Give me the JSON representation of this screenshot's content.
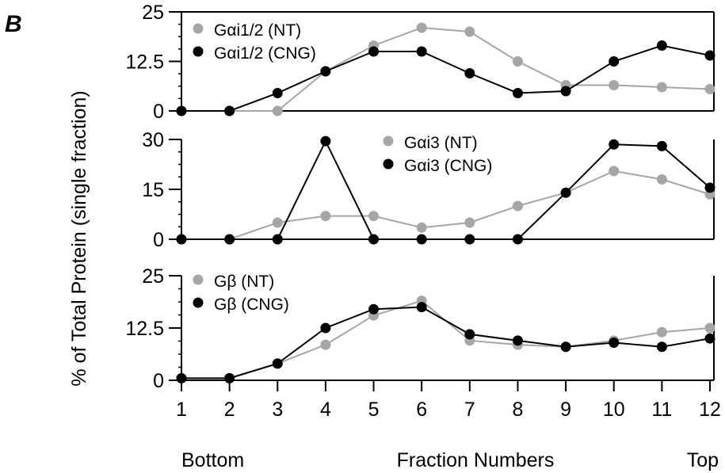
{
  "panel_label": "B",
  "ylabel": "%  of Total  Protein (single fraction)",
  "xlabel": "Fraction Numbers",
  "x_left_label": "Bottom",
  "x_right_label": "Top",
  "x_ticks": [
    "1",
    "2",
    "3",
    "4",
    "5",
    "6",
    "7",
    "8",
    "9",
    "10",
    "11",
    "12"
  ],
  "colors": {
    "NT": "#a6a6a6",
    "CNG": "#000000"
  },
  "chart_data": [
    {
      "type": "line",
      "x": [
        1,
        2,
        3,
        4,
        5,
        6,
        7,
        8,
        9,
        10,
        11,
        12
      ],
      "ylim": [
        0,
        25
      ],
      "yticks": [
        "0",
        "12.5",
        "25"
      ],
      "ytick_values": [
        0,
        12.5,
        25
      ],
      "legend": "top-left",
      "series": [
        {
          "name": "Gαi1/2 (NT)",
          "key": "NT",
          "values": [
            0,
            0,
            0,
            10,
            16.5,
            21,
            20,
            12.5,
            6.5,
            6.5,
            6,
            5.5
          ]
        },
        {
          "name": "Gαi1/2 (CNG)",
          "key": "CNG",
          "values": [
            0,
            0,
            4.5,
            10,
            15,
            15,
            9.5,
            4.5,
            5,
            12.5,
            16.5,
            14
          ]
        }
      ]
    },
    {
      "type": "line",
      "x": [
        1,
        2,
        3,
        4,
        5,
        6,
        7,
        8,
        9,
        10,
        11,
        12
      ],
      "ylim": [
        0,
        30
      ],
      "yticks": [
        "0",
        "15",
        "30"
      ],
      "ytick_values": [
        0,
        15,
        30
      ],
      "legend": "top-center",
      "series": [
        {
          "name": "Gαi3 (NT)",
          "key": "NT",
          "values": [
            0,
            0,
            5,
            7,
            7,
            3.5,
            5,
            10,
            14,
            20.5,
            18,
            13.5
          ]
        },
        {
          "name": "Gαi3 (CNG)",
          "key": "CNG",
          "values": [
            0,
            0,
            0,
            29.5,
            0,
            0,
            0,
            0,
            14,
            28.5,
            28,
            15.5
          ]
        }
      ]
    },
    {
      "type": "line",
      "x": [
        1,
        2,
        3,
        4,
        5,
        6,
        7,
        8,
        9,
        10,
        11,
        12
      ],
      "ylim": [
        0,
        25
      ],
      "yticks": [
        "0",
        "12.5",
        "25"
      ],
      "ytick_values": [
        0,
        12.5,
        25
      ],
      "legend": "top-left",
      "series": [
        {
          "name": "Gβ (NT)",
          "key": "NT",
          "values": [
            0.5,
            0.5,
            4,
            8.5,
            15.5,
            19,
            9.5,
            8.5,
            8,
            9.5,
            11.5,
            12.5
          ]
        },
        {
          "name": "Gβ (CNG)",
          "key": "CNG",
          "values": [
            0.5,
            0.5,
            4,
            12.5,
            17,
            17.5,
            11,
            9.5,
            8,
            9,
            8,
            10
          ]
        }
      ]
    }
  ]
}
